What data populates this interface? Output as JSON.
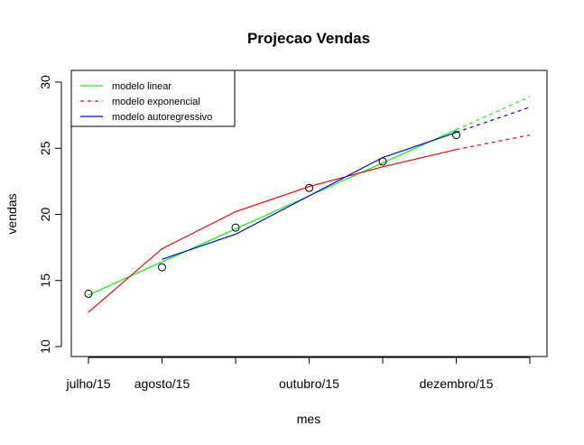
{
  "chart_data": {
    "type": "line",
    "title": "Projecao Vendas",
    "xlabel": "mes",
    "ylabel": "vendas",
    "ylim": [
      10,
      30
    ],
    "yticks": [
      10,
      15,
      20,
      25,
      30
    ],
    "x": [
      1,
      2,
      3,
      4,
      5,
      6,
      7
    ],
    "xtick_labels": [
      "julho/15",
      "agosto/15",
      "",
      "outubro/15",
      "",
      "dezembro/15",
      ""
    ],
    "observed": {
      "x": [
        1,
        2,
        3,
        4,
        5,
        6
      ],
      "y": [
        14,
        16,
        19,
        22,
        24,
        26
      ]
    },
    "series": [
      {
        "name": "modelo linear",
        "color": "#00ff00",
        "fitted": {
          "x": [
            1,
            2,
            3,
            4,
            5,
            6
          ],
          "y": [
            13.9,
            16.4,
            18.9,
            21.4,
            23.9,
            26.4
          ]
        },
        "forecast": {
          "x": [
            6,
            7
          ],
          "y": [
            26.4,
            28.9
          ]
        }
      },
      {
        "name": "modelo exponencial",
        "color": "#ff0000",
        "fitted": {
          "x": [
            1,
            2,
            3,
            4,
            5,
            6
          ],
          "y": [
            12.6,
            17.4,
            20.2,
            22.1,
            23.6,
            24.9
          ]
        },
        "forecast": {
          "x": [
            6,
            7
          ],
          "y": [
            24.9,
            26.0
          ]
        }
      },
      {
        "name": "modelo autoregressivo",
        "color": "#0000ff",
        "fitted": {
          "x": [
            2,
            3,
            4,
            5,
            6
          ],
          "y": [
            16.6,
            18.5,
            21.4,
            24.3,
            26.2
          ]
        },
        "forecast": {
          "x": [
            6,
            7
          ],
          "y": [
            26.2,
            28.1
          ]
        }
      }
    ],
    "legend_position": "top-left",
    "grid": false
  }
}
